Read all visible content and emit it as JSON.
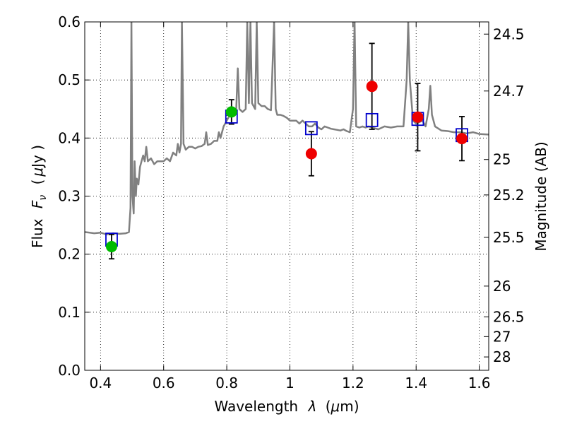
{
  "chart_data": {
    "type": "scatter",
    "xlabel_pre": "Wavelength",
    "xlabel_symbol": "λ",
    "xlabel_unit_pre": "(",
    "xlabel_unit_mu": "μ",
    "xlabel_unit_post": "m)",
    "ylabel_pre": "Flux",
    "ylabel_symbol": "F",
    "ylabel_sub": "ν",
    "ylabel_unit_pre": "(",
    "ylabel_unit_mu": "μ",
    "ylabel_unit_post": "Jy )",
    "y2label": "Magnitude (AB)",
    "xlim": [
      0.35,
      1.63
    ],
    "ylim": [
      0.0,
      0.6
    ],
    "grid": true,
    "x_ticks": [
      {
        "value": 0.4,
        "label": "0.4"
      },
      {
        "value": 0.6,
        "label": "0.6"
      },
      {
        "value": 0.8,
        "label": "0.8"
      },
      {
        "value": 1.0,
        "label": "1"
      },
      {
        "value": 1.2,
        "label": "1.2"
      },
      {
        "value": 1.4,
        "label": "1.4"
      },
      {
        "value": 1.6,
        "label": "1.6"
      }
    ],
    "y_ticks": [
      {
        "value": 0.0,
        "label": "0.0"
      },
      {
        "value": 0.1,
        "label": "0.1"
      },
      {
        "value": 0.2,
        "label": "0.2"
      },
      {
        "value": 0.3,
        "label": "0.3"
      },
      {
        "value": 0.4,
        "label": "0.4"
      },
      {
        "value": 0.5,
        "label": "0.5"
      },
      {
        "value": 0.6,
        "label": "0.6"
      }
    ],
    "y2_ticks": [
      {
        "flux": 0.579,
        "label": "24.5"
      },
      {
        "flux": 0.481,
        "label": "24.7"
      },
      {
        "flux": 0.363,
        "label": "25"
      },
      {
        "flux": 0.302,
        "label": "25.2"
      },
      {
        "flux": 0.229,
        "label": "25.5"
      },
      {
        "flux": 0.145,
        "label": "26"
      },
      {
        "flux": 0.092,
        "label": "26.5"
      },
      {
        "flux": 0.058,
        "label": "27"
      },
      {
        "flux": 0.023,
        "label": "28"
      }
    ],
    "colors": {
      "spectrum": "#808080",
      "model_box": "#0000cc",
      "green_points": "#00bb00",
      "red_points": "#ee0000",
      "errorbar": "#000000",
      "grid": "#000000"
    },
    "spectrum": [
      [
        0.35,
        0.238
      ],
      [
        0.38,
        0.236
      ],
      [
        0.4,
        0.237
      ],
      [
        0.42,
        0.234
      ],
      [
        0.44,
        0.236
      ],
      [
        0.46,
        0.235
      ],
      [
        0.48,
        0.236
      ],
      [
        0.49,
        0.238
      ],
      [
        0.495,
        0.28
      ],
      [
        0.498,
        0.6
      ],
      [
        0.501,
        0.3
      ],
      [
        0.505,
        0.27
      ],
      [
        0.508,
        0.36
      ],
      [
        0.512,
        0.3
      ],
      [
        0.515,
        0.33
      ],
      [
        0.52,
        0.32
      ],
      [
        0.525,
        0.35
      ],
      [
        0.53,
        0.36
      ],
      [
        0.535,
        0.37
      ],
      [
        0.54,
        0.36
      ],
      [
        0.545,
        0.385
      ],
      [
        0.55,
        0.36
      ],
      [
        0.56,
        0.365
      ],
      [
        0.57,
        0.355
      ],
      [
        0.58,
        0.36
      ],
      [
        0.59,
        0.36
      ],
      [
        0.6,
        0.36
      ],
      [
        0.61,
        0.365
      ],
      [
        0.62,
        0.36
      ],
      [
        0.63,
        0.375
      ],
      [
        0.64,
        0.37
      ],
      [
        0.645,
        0.39
      ],
      [
        0.65,
        0.375
      ],
      [
        0.655,
        0.39
      ],
      [
        0.658,
        0.6
      ],
      [
        0.663,
        0.39
      ],
      [
        0.67,
        0.38
      ],
      [
        0.68,
        0.385
      ],
      [
        0.69,
        0.385
      ],
      [
        0.7,
        0.382
      ],
      [
        0.71,
        0.385
      ],
      [
        0.72,
        0.386
      ],
      [
        0.73,
        0.39
      ],
      [
        0.735,
        0.41
      ],
      [
        0.74,
        0.388
      ],
      [
        0.75,
        0.39
      ],
      [
        0.76,
        0.395
      ],
      [
        0.77,
        0.395
      ],
      [
        0.775,
        0.41
      ],
      [
        0.78,
        0.4
      ],
      [
        0.79,
        0.42
      ],
      [
        0.8,
        0.43
      ],
      [
        0.81,
        0.44
      ],
      [
        0.82,
        0.44
      ],
      [
        0.83,
        0.45
      ],
      [
        0.835,
        0.52
      ],
      [
        0.84,
        0.45
      ],
      [
        0.85,
        0.445
      ],
      [
        0.86,
        0.45
      ],
      [
        0.865,
        0.6
      ],
      [
        0.87,
        0.46
      ],
      [
        0.875,
        0.6
      ],
      [
        0.88,
        0.46
      ],
      [
        0.89,
        0.45
      ],
      [
        0.895,
        0.6
      ],
      [
        0.9,
        0.46
      ],
      [
        0.91,
        0.455
      ],
      [
        0.92,
        0.455
      ],
      [
        0.93,
        0.45
      ],
      [
        0.94,
        0.448
      ],
      [
        0.95,
        0.6
      ],
      [
        0.955,
        0.45
      ],
      [
        0.96,
        0.44
      ],
      [
        0.97,
        0.44
      ],
      [
        0.98,
        0.438
      ],
      [
        0.99,
        0.435
      ],
      [
        1.0,
        0.43
      ],
      [
        1.01,
        0.43
      ],
      [
        1.02,
        0.43
      ],
      [
        1.03,
        0.425
      ],
      [
        1.04,
        0.43
      ],
      [
        1.05,
        0.425
      ],
      [
        1.06,
        0.42
      ],
      [
        1.07,
        0.42
      ],
      [
        1.08,
        0.425
      ],
      [
        1.09,
        0.418
      ],
      [
        1.1,
        0.415
      ],
      [
        1.11,
        0.42
      ],
      [
        1.12,
        0.418
      ],
      [
        1.13,
        0.416
      ],
      [
        1.14,
        0.415
      ],
      [
        1.15,
        0.414
      ],
      [
        1.16,
        0.413
      ],
      [
        1.17,
        0.415
      ],
      [
        1.18,
        0.412
      ],
      [
        1.19,
        0.41
      ],
      [
        1.2,
        0.45
      ],
      [
        1.205,
        0.6
      ],
      [
        1.21,
        0.42
      ],
      [
        1.22,
        0.418
      ],
      [
        1.23,
        0.42
      ],
      [
        1.24,
        0.418
      ],
      [
        1.25,
        0.42
      ],
      [
        1.26,
        0.418
      ],
      [
        1.28,
        0.415
      ],
      [
        1.3,
        0.42
      ],
      [
        1.32,
        0.418
      ],
      [
        1.34,
        0.42
      ],
      [
        1.36,
        0.42
      ],
      [
        1.37,
        0.5
      ],
      [
        1.375,
        0.6
      ],
      [
        1.38,
        0.5
      ],
      [
        1.39,
        0.43
      ],
      [
        1.4,
        0.425
      ],
      [
        1.42,
        0.43
      ],
      [
        1.43,
        0.42
      ],
      [
        1.44,
        0.45
      ],
      [
        1.445,
        0.49
      ],
      [
        1.45,
        0.44
      ],
      [
        1.46,
        0.42
      ],
      [
        1.48,
        0.413
      ],
      [
        1.5,
        0.412
      ],
      [
        1.52,
        0.41
      ],
      [
        1.54,
        0.41
      ],
      [
        1.56,
        0.408
      ],
      [
        1.58,
        0.41
      ],
      [
        1.6,
        0.407
      ],
      [
        1.63,
        0.406
      ]
    ],
    "model_boxes": [
      {
        "x": 0.435,
        "flux": 0.225
      },
      {
        "x": 0.815,
        "flux": 0.437
      },
      {
        "x": 1.068,
        "flux": 0.417
      },
      {
        "x": 1.26,
        "flux": 0.431
      },
      {
        "x": 1.405,
        "flux": 0.433
      },
      {
        "x": 1.545,
        "flux": 0.405
      }
    ],
    "series": [
      {
        "color": "green",
        "points": [
          {
            "x": 0.435,
            "y": 0.213,
            "err": 0.021
          },
          {
            "x": 0.815,
            "y": 0.445,
            "err": 0.021
          }
        ]
      },
      {
        "color": "red",
        "points": [
          {
            "x": 1.068,
            "y": 0.373,
            "err": 0.038
          },
          {
            "x": 1.26,
            "y": 0.489,
            "err": 0.074
          },
          {
            "x": 1.405,
            "y": 0.436,
            "err": 0.058
          },
          {
            "x": 1.545,
            "y": 0.399,
            "err": 0.038
          }
        ]
      }
    ]
  }
}
